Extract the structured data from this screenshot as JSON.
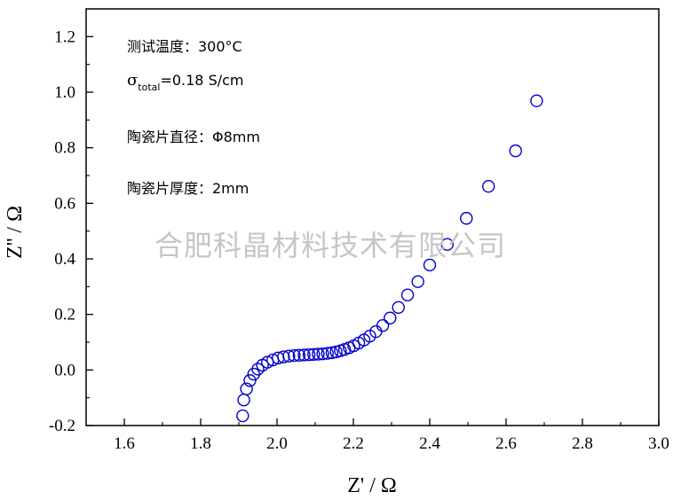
{
  "chart_data": {
    "type": "scatter",
    "title": "",
    "xlabel": "Z' / Ω",
    "ylabel": "Z'' / Ω",
    "xlim": [
      1.5,
      3.0
    ],
    "ylim": [
      -0.2,
      1.3
    ],
    "xticks": [
      1.6,
      1.8,
      2.0,
      2.2,
      2.4,
      2.6,
      2.8,
      3.0
    ],
    "yticks": [
      -0.2,
      0.0,
      0.2,
      0.4,
      0.6,
      0.8,
      1.0,
      1.2
    ],
    "xtick_labels": [
      "1.6",
      "1.8",
      "2.0",
      "2.2",
      "2.4",
      "2.6",
      "2.8",
      "3.0"
    ],
    "ytick_labels": [
      "-0.2",
      "0.0",
      "0.2",
      "0.4",
      "0.6",
      "0.8",
      "1.0",
      "1.2"
    ],
    "grid": false,
    "marker_color": "#0000cc",
    "annotations": {
      "line1": "测试温度：300°C",
      "line2_symbol": "σ",
      "line2_subscript": "total",
      "line2_value": "=0.18 S/cm",
      "line3": "陶瓷片直径：Φ8mm",
      "line4": "陶瓷片厚度：2mm"
    },
    "watermark": "合肥科晶材料技术有限公司",
    "series": [
      {
        "x": [
          1.91,
          1.913,
          1.92,
          1.929,
          1.939,
          1.95,
          1.962,
          1.975,
          1.989,
          2.003,
          2.017,
          2.031,
          2.045,
          2.058,
          2.071,
          2.084,
          2.096,
          2.108,
          2.12,
          2.132,
          2.144,
          2.155,
          2.166,
          2.177,
          2.189,
          2.201,
          2.214,
          2.228,
          2.243,
          2.259,
          2.277,
          2.296,
          2.318,
          2.342,
          2.369,
          2.4,
          2.446,
          2.496,
          2.554,
          2.625,
          2.68
        ],
        "y": [
          -0.165,
          -0.108,
          -0.068,
          -0.038,
          -0.015,
          0.003,
          0.017,
          0.028,
          0.036,
          0.043,
          0.047,
          0.05,
          0.052,
          0.053,
          0.054,
          0.055,
          0.056,
          0.057,
          0.058,
          0.06,
          0.062,
          0.065,
          0.069,
          0.074,
          0.08,
          0.087,
          0.097,
          0.108,
          0.122,
          0.138,
          0.16,
          0.187,
          0.225,
          0.27,
          0.318,
          0.378,
          0.452,
          0.546,
          0.661,
          0.789,
          0.969
        ]
      }
    ]
  }
}
